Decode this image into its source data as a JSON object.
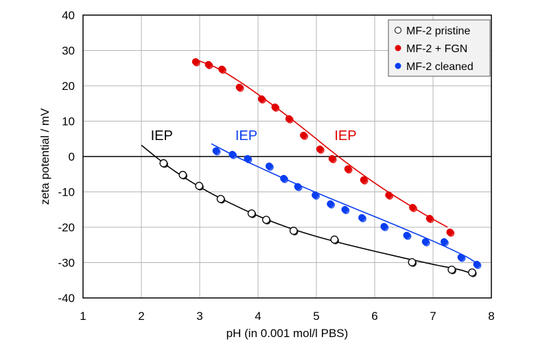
{
  "chart_data": {
    "type": "scatter",
    "title": "",
    "xlabel": "pH (in 0.001 mol/l PBS)",
    "ylabel": "zeta potential / mV",
    "xlim": [
      1,
      8
    ],
    "ylim": [
      -40,
      40
    ],
    "xticks": [
      1,
      2,
      3,
      4,
      5,
      6,
      7,
      8
    ],
    "yticks": [
      -40,
      -30,
      -20,
      -10,
      0,
      10,
      20,
      30,
      40
    ],
    "grid": true,
    "zero_line": true,
    "legend": {
      "placement": "top-right"
    },
    "series": [
      {
        "name": "MF-2 pristine",
        "color": "#000000",
        "marker": "open-circle",
        "points": [
          [
            2.38,
            -1.9
          ],
          [
            2.71,
            -5.2
          ],
          [
            2.99,
            -8.3
          ],
          [
            3.36,
            -12.0
          ],
          [
            3.89,
            -16.1
          ],
          [
            4.14,
            -17.9
          ],
          [
            4.61,
            -21.0
          ],
          [
            5.31,
            -23.5
          ],
          [
            6.64,
            -29.9
          ],
          [
            7.32,
            -32.0
          ],
          [
            7.67,
            -32.8
          ]
        ],
        "fit": [
          [
            2.0,
            3.2
          ],
          [
            2.5,
            -3.3
          ],
          [
            3.0,
            -8.6
          ],
          [
            3.5,
            -13.0
          ],
          [
            4.0,
            -16.8
          ],
          [
            4.5,
            -20.0
          ],
          [
            5.0,
            -22.6
          ],
          [
            5.5,
            -24.8
          ],
          [
            6.0,
            -26.8
          ],
          [
            6.5,
            -28.7
          ],
          [
            7.0,
            -30.5
          ],
          [
            7.5,
            -32.2
          ],
          [
            7.7,
            -33.5
          ]
        ]
      },
      {
        "name": "MF-2 + FGN",
        "color": "#e00000",
        "marker": "filled-circle",
        "points": [
          [
            2.93,
            26.8
          ],
          [
            3.15,
            26.0
          ],
          [
            3.38,
            24.7
          ],
          [
            3.68,
            19.6
          ],
          [
            4.06,
            16.3
          ],
          [
            4.29,
            14.0
          ],
          [
            4.53,
            10.7
          ],
          [
            4.78,
            6.0
          ],
          [
            5.06,
            2.1
          ],
          [
            5.27,
            -0.6
          ],
          [
            5.54,
            -3.5
          ],
          [
            5.81,
            -6.6
          ],
          [
            6.24,
            -10.9
          ],
          [
            6.65,
            -14.4
          ],
          [
            6.94,
            -17.5
          ],
          [
            7.29,
            -21.4
          ]
        ],
        "fit": [
          [
            2.9,
            27.6
          ],
          [
            3.3,
            25.0
          ],
          [
            3.7,
            21.0
          ],
          [
            4.1,
            16.4
          ],
          [
            4.5,
            11.5
          ],
          [
            4.9,
            6.3
          ],
          [
            5.3,
            1.0
          ],
          [
            5.7,
            -4.0
          ],
          [
            6.1,
            -8.6
          ],
          [
            6.5,
            -12.8
          ],
          [
            6.9,
            -16.8
          ],
          [
            7.25,
            -20.0
          ]
        ]
      },
      {
        "name": "MF-2 cleaned",
        "color": "#0a3ef0",
        "marker": "filled-circle",
        "points": [
          [
            3.28,
            1.6
          ],
          [
            3.56,
            0.6
          ],
          [
            3.82,
            -0.6
          ],
          [
            4.19,
            -2.7
          ],
          [
            4.44,
            -6.2
          ],
          [
            4.68,
            -8.5
          ],
          [
            4.98,
            -10.9
          ],
          [
            5.24,
            -13.4
          ],
          [
            5.49,
            -15.0
          ],
          [
            5.78,
            -17.3
          ],
          [
            6.16,
            -19.8
          ],
          [
            6.55,
            -22.3
          ],
          [
            6.87,
            -24.1
          ],
          [
            7.19,
            -24.1
          ],
          [
            7.48,
            -28.5
          ],
          [
            7.75,
            -30.5
          ]
        ],
        "fit": [
          [
            3.2,
            3.6
          ],
          [
            3.6,
            0.2
          ],
          [
            4.0,
            -2.9
          ],
          [
            4.4,
            -5.9
          ],
          [
            4.8,
            -8.8
          ],
          [
            5.2,
            -11.6
          ],
          [
            5.6,
            -14.3
          ],
          [
            6.0,
            -17.0
          ],
          [
            6.4,
            -19.7
          ],
          [
            6.8,
            -22.5
          ],
          [
            7.2,
            -25.4
          ],
          [
            7.6,
            -28.6
          ],
          [
            7.8,
            -30.8
          ]
        ]
      }
    ],
    "annotations": [
      {
        "text": "IEP",
        "color": "#000000",
        "x": 2.35,
        "y": 6
      },
      {
        "text": "IEP",
        "color": "#0a3ef0",
        "x": 3.8,
        "y": 6
      },
      {
        "text": "IEP",
        "color": "#e00000",
        "x": 5.5,
        "y": 6
      }
    ]
  }
}
